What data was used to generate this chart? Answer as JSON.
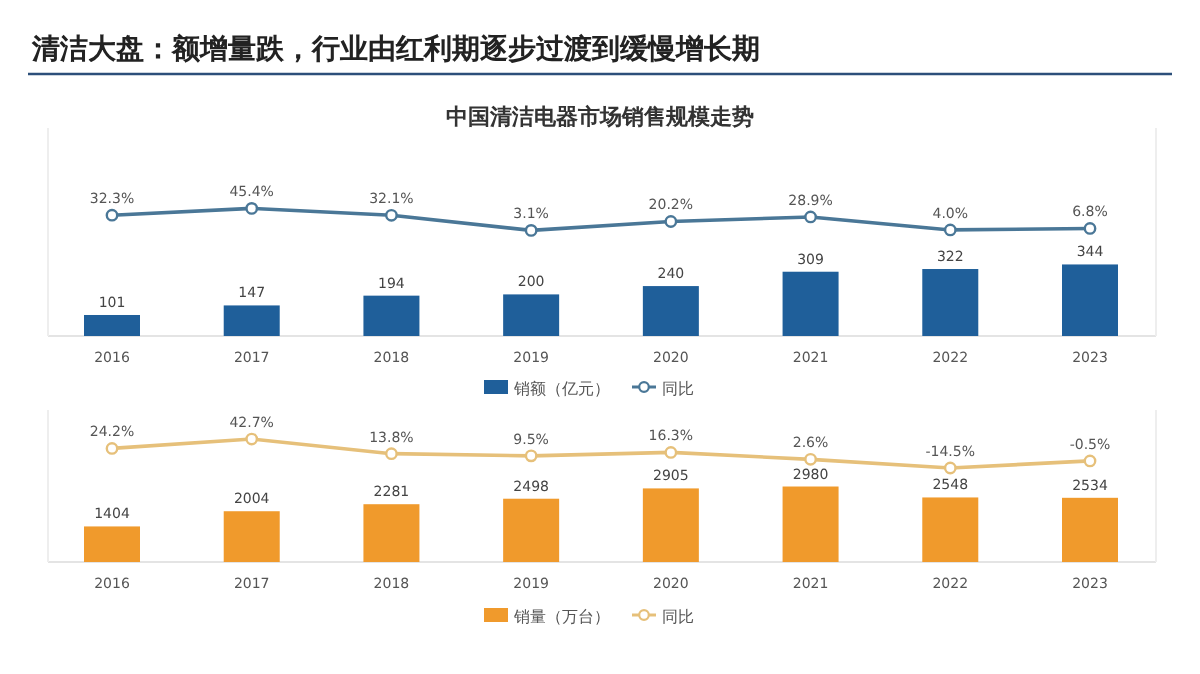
{
  "chart_data": [
    {
      "type": "bar",
      "title": "清洁大盘：额增量跌，行业由红利期逐步过渡到缓慢增长期",
      "subtitle": "中国清洁电器市场销售规模走势",
      "categories": [
        "2016",
        "2017",
        "2018",
        "2019",
        "2020",
        "2021",
        "2022",
        "2023"
      ],
      "data_labels": true,
      "legend": "bottom",
      "marker": "circle",
      "tick_labels": false,
      "ylim": [
        0,
        1000
      ],
      "y2lim": [
        -200,
        200
      ],
      "series": [
        {
          "name": "销额（亿元）",
          "type": "bar",
          "color": "#1f5f9a",
          "values": [
            101,
            147,
            194,
            200,
            240,
            309,
            322,
            344
          ]
        },
        {
          "name": "同比",
          "type": "line",
          "axis": "y2",
          "color": "#4a7797",
          "values": [
            32.3,
            45.4,
            32.1,
            3.1,
            20.2,
            28.9,
            4.0,
            6.8
          ],
          "value_labels": [
            "32.3%",
            "45.4%",
            "32.1%",
            "3.1%",
            "20.2%",
            "28.9%",
            "4.0%",
            "6.8%"
          ]
        }
      ]
    },
    {
      "type": "bar",
      "categories": [
        "2016",
        "2017",
        "2018",
        "2019",
        "2020",
        "2021",
        "2022",
        "2023"
      ],
      "data_labels": true,
      "legend": "bottom",
      "marker": "circle",
      "tick_labels": false,
      "ylim": [
        0,
        6000
      ],
      "y2lim": [
        -200,
        100
      ],
      "series": [
        {
          "name": "销量（万台）",
          "type": "bar",
          "color": "#f09a2c",
          "values": [
            1404,
            2004,
            2281,
            2498,
            2905,
            2980,
            2548,
            2534
          ]
        },
        {
          "name": "同比",
          "type": "line",
          "axis": "y2",
          "color": "#e6c07a",
          "values": [
            24.2,
            42.7,
            13.8,
            9.5,
            16.3,
            2.6,
            -14.5,
            -0.5
          ],
          "value_labels": [
            "24.2%",
            "42.7%",
            "13.8%",
            "9.5%",
            "16.3%",
            "2.6%",
            "-14.5%",
            "-0.5%"
          ]
        }
      ]
    }
  ]
}
